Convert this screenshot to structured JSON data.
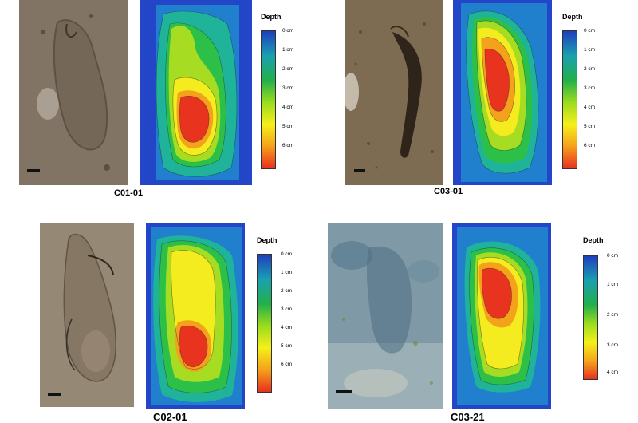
{
  "panels": [
    {
      "id": "C01-01",
      "label": "C01-01",
      "legend": {
        "title": "Depth",
        "ticks": [
          "0 cm",
          "1 cm",
          "2 cm",
          "3 cm",
          "4 cm",
          "5 cm",
          "6 cm"
        ]
      }
    },
    {
      "id": "C03-01",
      "label": "C03-01",
      "legend": {
        "title": "Depth",
        "ticks": [
          "0 cm",
          "1 cm",
          "2 cm",
          "3 cm",
          "4 cm",
          "5 cm",
          "6 cm"
        ]
      }
    },
    {
      "id": "C02-01",
      "label": "C02-01",
      "legend": {
        "title": "Depth",
        "ticks": [
          "0 cm",
          "1 cm",
          "2 cm",
          "3 cm",
          "4 cm",
          "5 cm",
          "6 cm"
        ]
      }
    },
    {
      "id": "C03-21",
      "label": "C03-21",
      "legend": {
        "title": "Depth",
        "ticks": [
          "0 cm",
          "1 cm",
          "2 cm",
          "3 cm",
          "4 cm"
        ]
      }
    }
  ],
  "colors": {
    "depth_scale": [
      "#1f3fbf",
      "#1aa0b0",
      "#22b04a",
      "#9bdc1e",
      "#f5f01a",
      "#f5a01a",
      "#e83020"
    ]
  }
}
